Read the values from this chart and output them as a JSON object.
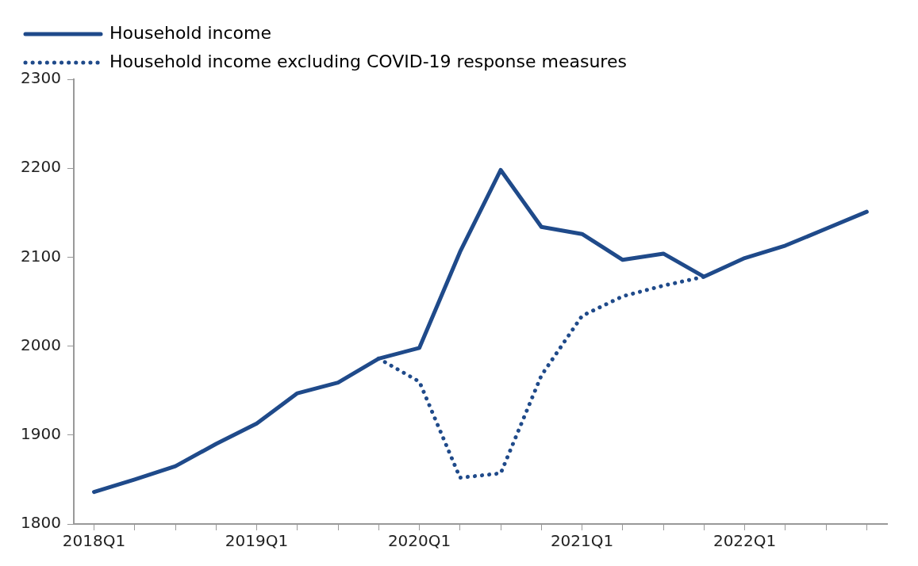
{
  "chart_data": {
    "type": "line",
    "categories": [
      "2018Q1",
      null,
      null,
      null,
      "2019Q1",
      null,
      null,
      null,
      "2020Q1",
      null,
      null,
      null,
      "2021Q1",
      null,
      null,
      null,
      "2022Q1",
      null,
      null,
      null
    ],
    "series": [
      {
        "name": "Household income",
        "color": "#1f4a8a",
        "line_style": "solid",
        "values": [
          1836,
          1850,
          1865,
          1890,
          1913,
          1947,
          1959,
          1986,
          1998,
          2106,
          2198,
          2134,
          2126,
          2097,
          2104,
          2078,
          2099,
          2113,
          2132,
          2151
        ]
      },
      {
        "name": "Household income excluding COVID-19 response measures",
        "color": "#1f4a8a",
        "line_style": "dotted",
        "values": [
          null,
          null,
          null,
          null,
          null,
          null,
          null,
          1986,
          1960,
          1852,
          1857,
          1967,
          2034,
          2056,
          2068,
          2078,
          null,
          null,
          null,
          null
        ]
      }
    ],
    "ylim": [
      1800,
      2300
    ],
    "yticks": [
      1800,
      1900,
      2000,
      2100,
      2200,
      2300
    ],
    "grid": false,
    "legend": "top left",
    "marker": "none"
  }
}
